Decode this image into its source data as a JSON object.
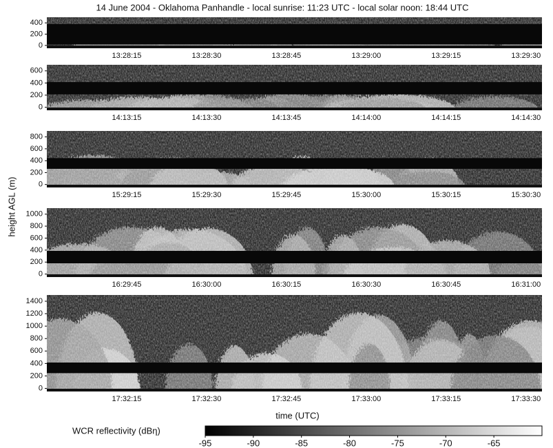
{
  "title": "14 June 2004  -  Oklahoma Panhandle  -  local sunrise: 11:23 UTC  -  local solar noon: 18:44 UTC",
  "y_label": "height AGL (m)",
  "x_label": "time (UTC)",
  "chart_data": [
    {
      "type": "heatmap",
      "ylim": [
        -50,
        500
      ],
      "yticks": [
        0,
        200,
        400
      ],
      "x_labels": [
        "13:28:15",
        "13:28:30",
        "13:28:45",
        "13:29:00",
        "13:29:15",
        "13:29:30"
      ]
    },
    {
      "type": "heatmap",
      "ylim": [
        -50,
        700
      ],
      "yticks": [
        0,
        200,
        400,
        600
      ],
      "x_labels": [
        "14:13:15",
        "14:13:30",
        "14:13:45",
        "14:14:00",
        "14:14:15",
        "14:14:30"
      ]
    },
    {
      "type": "heatmap",
      "ylim": [
        -50,
        900
      ],
      "yticks": [
        0,
        200,
        400,
        600,
        800
      ],
      "x_labels": [
        "15:29:15",
        "15:29:30",
        "15:29:45",
        "15:30:00",
        "15:30:15",
        "15:30:30"
      ]
    },
    {
      "type": "heatmap",
      "ylim": [
        -50,
        1100
      ],
      "yticks": [
        0,
        200,
        400,
        600,
        800,
        1000
      ],
      "x_labels": [
        "16:29:45",
        "16:30:00",
        "16:30:15",
        "16:30:30",
        "16:30:45",
        "16:31:00"
      ]
    },
    {
      "type": "heatmap",
      "ylim": [
        -50,
        1500
      ],
      "yticks": [
        0,
        200,
        400,
        600,
        800,
        1000,
        1200,
        1400
      ],
      "x_labels": [
        "17:32:15",
        "17:32:30",
        "17:32:45",
        "17:33:00",
        "17:33:15",
        "17:33:30"
      ]
    }
  ],
  "colorbar": {
    "label": "WCR reflectivity (dBη)",
    "clim": [
      -95,
      -60
    ],
    "ticks": [
      -95,
      -90,
      -85,
      -80,
      -75,
      -70,
      -65
    ]
  }
}
